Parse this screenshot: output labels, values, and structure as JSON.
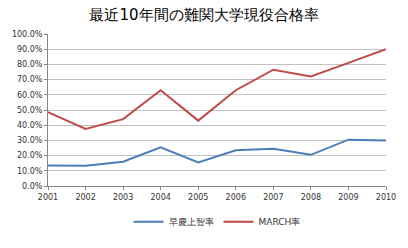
{
  "chart_data": {
    "type": "line",
    "title": "最近10年間の難関大学現役合格率",
    "categories": [
      "2001",
      "2002",
      "2003",
      "2004",
      "2005",
      "2006",
      "2007",
      "2008",
      "2009",
      "2010"
    ],
    "series": [
      {
        "name": "早慶上智率",
        "color": "#4a7ebb",
        "values": [
          13.5,
          13.3,
          16,
          25.5,
          15.5,
          23.5,
          24.5,
          20.5,
          30.5,
          30
        ]
      },
      {
        "name": "MARCH率",
        "color": "#be4b48",
        "values": [
          48.5,
          37.5,
          44,
          63,
          43,
          63,
          76.5,
          72,
          81,
          90
        ]
      }
    ],
    "ylim": [
      0,
      100
    ],
    "yticks": [
      {
        "value": 0,
        "label": "0.0%"
      },
      {
        "value": 10,
        "label": "10.0%"
      },
      {
        "value": 20,
        "label": "20.0%"
      },
      {
        "value": 30,
        "label": "30.0%"
      },
      {
        "value": 40,
        "label": "40.0%"
      },
      {
        "value": 50,
        "label": "50.0%"
      },
      {
        "value": 60,
        "label": "60.0%"
      },
      {
        "value": 70,
        "label": "70.0%"
      },
      {
        "value": 80,
        "label": "80.0%"
      },
      {
        "value": 90,
        "label": "90.0%"
      },
      {
        "value": 100,
        "label": "100.0%"
      }
    ],
    "grid": true,
    "legend": "bottom"
  }
}
